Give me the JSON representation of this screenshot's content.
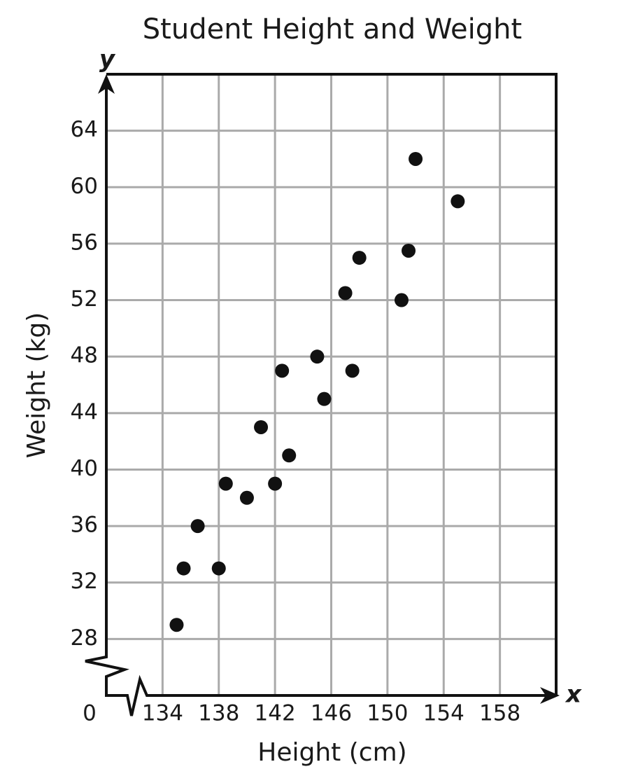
{
  "chart_data": {
    "type": "scatter",
    "title": "Student Height and Weight",
    "x_label": "Height (cm)",
    "y_label": "Weight (kg)",
    "x_axis_letter": "x",
    "y_axis_letter": "y",
    "origin_label": "0",
    "color": "#111111",
    "x": [
      135,
      135.5,
      136.5,
      138,
      138.5,
      140,
      141,
      142,
      142.5,
      143,
      145,
      145.5,
      147,
      147.5,
      148,
      151,
      151.5,
      152,
      155
    ],
    "values": [
      29,
      33,
      36,
      33,
      39,
      38,
      43,
      39,
      47,
      41,
      48,
      45,
      52.5,
      47,
      55,
      52,
      55.5,
      62,
      59
    ],
    "xlim": [
      130,
      162
    ],
    "ylim": [
      24,
      68
    ],
    "xticks": [
      134,
      138,
      142,
      146,
      150,
      154,
      158
    ],
    "yticks": [
      28,
      32,
      36,
      40,
      44,
      48,
      52,
      56,
      60,
      64
    ],
    "grid": true
  }
}
